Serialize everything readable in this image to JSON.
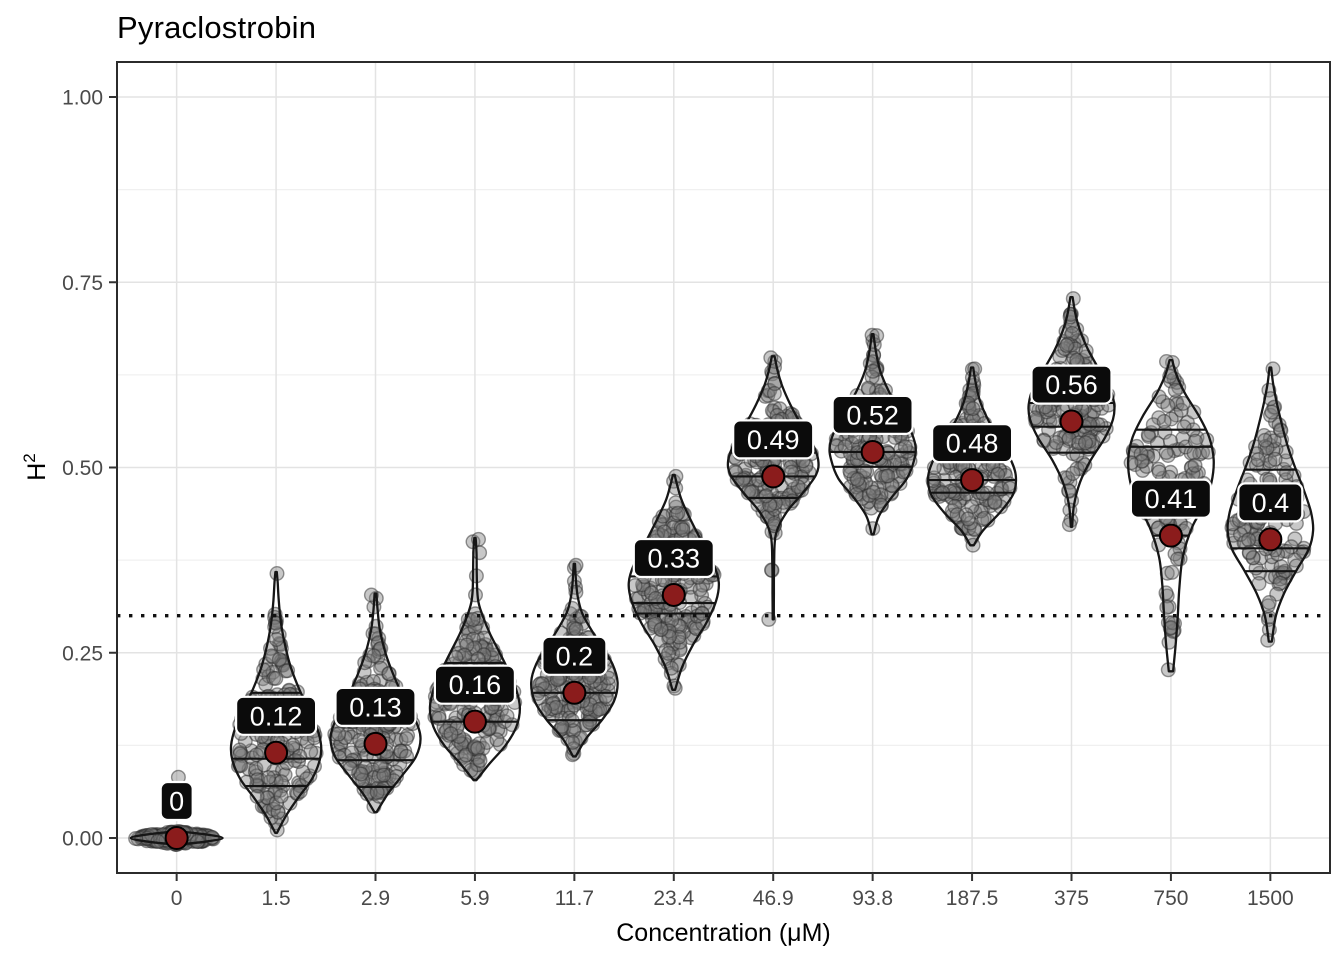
{
  "title": "Pyraclostrobin",
  "x_axis": {
    "label": "Concentration (μM)",
    "ticks": [
      "0",
      "1.5",
      "2.9",
      "5.9",
      "11.7",
      "23.4",
      "46.9",
      "93.8",
      "187.5",
      "375",
      "750",
      "1500"
    ]
  },
  "y_axis": {
    "label_base": "H",
    "label_exp": "2",
    "ticks": [
      "0.00",
      "0.25",
      "0.50",
      "0.75",
      "1.00"
    ],
    "tick_values": [
      0,
      0.25,
      0.5,
      0.75,
      1.0
    ],
    "minor_values": [
      0.125,
      0.375,
      0.625,
      0.875
    ]
  },
  "reference_line": {
    "value": 0.3,
    "style": "dotted",
    "color": "#111111"
  },
  "colors": {
    "mean_point": "#8B1C1C",
    "mean_point_stroke": "#000000",
    "label_bg": "#0B0B0B",
    "label_text": "#FFFFFF",
    "label_border": "#FFFFFF",
    "violin_stroke": "#161616",
    "violin_fill": "#FFFFFF",
    "quantile_line": "#141414",
    "grid_major": "#E3E3E3",
    "grid_minor": "#F0F0F0",
    "panel_border": "#2B2B2B",
    "tick_mark": "#333333",
    "tick_text": "#4A4A4A",
    "axis_title": "#000000",
    "jitter_fill": "rgba(125,125,125,0.42)",
    "jitter_stroke": "rgba(45,45,45,0.5)"
  },
  "chart_data": {
    "type": "violin",
    "title": "Pyraclostrobin",
    "xlabel": "Concentration (μM)",
    "ylabel": "H²",
    "ylim": [
      0,
      1.0
    ],
    "grid": true,
    "reference_y": 0.3,
    "categories": [
      "0",
      "1.5",
      "2.9",
      "5.9",
      "11.7",
      "23.4",
      "46.9",
      "93.8",
      "187.5",
      "375",
      "750",
      "1500"
    ],
    "mean_labels": [
      "0",
      "0.12",
      "0.13",
      "0.16",
      "0.2",
      "0.33",
      "0.49",
      "0.52",
      "0.48",
      "0.56",
      "0.41",
      "0.4"
    ],
    "series": [
      {
        "concentration": "0",
        "mean": 0,
        "mean_label": "0",
        "quantiles": [],
        "range": [
          -0.009,
          0.009
        ],
        "profile": [
          [
            -0.009,
            0.02
          ],
          [
            -0.005,
            0.62
          ],
          [
            0,
            1
          ],
          [
            0.005,
            0.62
          ],
          [
            0.009,
            0.02
          ]
        ],
        "n_points": 220,
        "outliers": [
          0.082
        ],
        "hw": 1.02
      },
      {
        "concentration": "1.5",
        "mean": 0.115,
        "mean_label": "0.12",
        "quantiles": [
          0.07,
          0.107,
          0.196
        ],
        "range": [
          0.007,
          0.359
        ],
        "profile": [
          [
            0.007,
            0.02
          ],
          [
            0.03,
            0.22
          ],
          [
            0.055,
            0.5
          ],
          [
            0.08,
            0.8
          ],
          [
            0.105,
            0.97
          ],
          [
            0.125,
            1
          ],
          [
            0.15,
            0.9
          ],
          [
            0.175,
            0.72
          ],
          [
            0.2,
            0.52
          ],
          [
            0.23,
            0.33
          ],
          [
            0.26,
            0.2
          ],
          [
            0.29,
            0.11
          ],
          [
            0.32,
            0.06
          ],
          [
            0.345,
            0.035
          ],
          [
            0.359,
            0.015
          ]
        ],
        "n_points": 190,
        "outliers": [
          0.357
        ],
        "hw": 1
      },
      {
        "concentration": "2.9",
        "mean": 0.127,
        "mean_label": "0.13",
        "quantiles": [
          0.069,
          0.105,
          0.17
        ],
        "range": [
          0.035,
          0.33
        ],
        "profile": [
          [
            0.035,
            0.025
          ],
          [
            0.06,
            0.28
          ],
          [
            0.085,
            0.6
          ],
          [
            0.11,
            0.9
          ],
          [
            0.135,
            1
          ],
          [
            0.16,
            0.88
          ],
          [
            0.19,
            0.62
          ],
          [
            0.22,
            0.4
          ],
          [
            0.25,
            0.22
          ],
          [
            0.28,
            0.1
          ],
          [
            0.305,
            0.05
          ],
          [
            0.33,
            0.02
          ]
        ],
        "n_points": 190,
        "outliers": [
          0.328
        ],
        "hw": 1
      },
      {
        "concentration": "5.9",
        "mean": 0.157,
        "mean_label": "0.16",
        "quantiles": [
          0.157,
          0.196,
          0.236
        ],
        "range": [
          0.078,
          0.405
        ],
        "profile": [
          [
            0.078,
            0.03
          ],
          [
            0.1,
            0.32
          ],
          [
            0.125,
            0.68
          ],
          [
            0.15,
            0.92
          ],
          [
            0.175,
            1
          ],
          [
            0.2,
            0.92
          ],
          [
            0.225,
            0.75
          ],
          [
            0.25,
            0.55
          ],
          [
            0.275,
            0.34
          ],
          [
            0.3,
            0.17
          ],
          [
            0.318,
            0.08
          ],
          [
            0.335,
            0.05
          ],
          [
            0.36,
            0.04
          ],
          [
            0.385,
            0.035
          ],
          [
            0.405,
            0.015
          ]
        ],
        "n_points": 190,
        "outliers": [
          0.403,
          0.385
        ],
        "hw": 1
      },
      {
        "concentration": "11.7",
        "mean": 0.196,
        "mean_label": "0.2",
        "quantiles": [
          0.159,
          0.196,
          0.242
        ],
        "range": [
          0.11,
          0.37
        ],
        "profile": [
          [
            0.11,
            0.03
          ],
          [
            0.135,
            0.28
          ],
          [
            0.16,
            0.65
          ],
          [
            0.185,
            0.92
          ],
          [
            0.21,
            1
          ],
          [
            0.235,
            0.88
          ],
          [
            0.26,
            0.62
          ],
          [
            0.285,
            0.35
          ],
          [
            0.305,
            0.17
          ],
          [
            0.325,
            0.08
          ],
          [
            0.345,
            0.04
          ],
          [
            0.37,
            0.015
          ]
        ],
        "n_points": 190,
        "outliers": [
          0.368
        ],
        "hw": 0.96
      },
      {
        "concentration": "23.4",
        "mean": 0.328,
        "mean_label": "0.33",
        "quantiles": [
          0.303,
          0.317,
          0.353
        ],
        "range": [
          0.2,
          0.49
        ],
        "profile": [
          [
            0.2,
            0.03
          ],
          [
            0.23,
            0.18
          ],
          [
            0.26,
            0.42
          ],
          [
            0.29,
            0.72
          ],
          [
            0.32,
            0.94
          ],
          [
            0.345,
            1
          ],
          [
            0.37,
            0.88
          ],
          [
            0.4,
            0.62
          ],
          [
            0.43,
            0.37
          ],
          [
            0.455,
            0.18
          ],
          [
            0.475,
            0.08
          ],
          [
            0.49,
            0.02
          ]
        ],
        "n_points": 190,
        "outliers": [
          0.488,
          0.202
        ],
        "hw": 1
      },
      {
        "concentration": "46.9",
        "mean": 0.488,
        "mean_label": "0.49",
        "quantiles": [
          0.459,
          0.488,
          0.52
        ],
        "range": [
          0.295,
          0.65
        ],
        "profile": [
          [
            0.295,
            0.012
          ],
          [
            0.33,
            0.015
          ],
          [
            0.37,
            0.02
          ],
          [
            0.41,
            0.06
          ],
          [
            0.44,
            0.3
          ],
          [
            0.465,
            0.65
          ],
          [
            0.49,
            0.95
          ],
          [
            0.51,
            1
          ],
          [
            0.535,
            0.85
          ],
          [
            0.56,
            0.6
          ],
          [
            0.585,
            0.38
          ],
          [
            0.61,
            0.2
          ],
          [
            0.63,
            0.1
          ],
          [
            0.65,
            0.03
          ]
        ],
        "n_points": 175,
        "outliers": [
          0.295,
          0.648
        ],
        "hw": 1
      },
      {
        "concentration": "93.8",
        "mean": 0.521,
        "mean_label": "0.52",
        "quantiles": [
          0.501,
          0.521,
          0.551
        ],
        "range": [
          0.41,
          0.68
        ],
        "profile": [
          [
            0.41,
            0.025
          ],
          [
            0.435,
            0.15
          ],
          [
            0.46,
            0.45
          ],
          [
            0.485,
            0.8
          ],
          [
            0.51,
            0.97
          ],
          [
            0.53,
            1
          ],
          [
            0.555,
            0.85
          ],
          [
            0.58,
            0.6
          ],
          [
            0.605,
            0.36
          ],
          [
            0.63,
            0.18
          ],
          [
            0.655,
            0.08
          ],
          [
            0.68,
            0.02
          ]
        ],
        "n_points": 170,
        "outliers": [
          0.678
        ],
        "hw": 0.95
      },
      {
        "concentration": "187.5",
        "mean": 0.483,
        "mean_label": "0.48",
        "quantiles": [
          0.466,
          0.483,
          0.512
        ],
        "range": [
          0.395,
          0.635
        ],
        "profile": [
          [
            0.395,
            0.04
          ],
          [
            0.415,
            0.25
          ],
          [
            0.44,
            0.65
          ],
          [
            0.465,
            0.95
          ],
          [
            0.49,
            1
          ],
          [
            0.515,
            0.85
          ],
          [
            0.54,
            0.6
          ],
          [
            0.565,
            0.36
          ],
          [
            0.59,
            0.18
          ],
          [
            0.615,
            0.08
          ],
          [
            0.635,
            0.025
          ]
        ],
        "n_points": 170,
        "outliers": [
          0.633
        ],
        "hw": 0.97
      },
      {
        "concentration": "375",
        "mean": 0.562,
        "mean_label": "0.56",
        "quantiles": [
          0.52,
          0.555,
          0.587
        ],
        "range": [
          0.42,
          0.73
        ],
        "profile": [
          [
            0.42,
            0.015
          ],
          [
            0.45,
            0.06
          ],
          [
            0.48,
            0.2
          ],
          [
            0.51,
            0.45
          ],
          [
            0.54,
            0.78
          ],
          [
            0.565,
            0.97
          ],
          [
            0.585,
            1
          ],
          [
            0.61,
            0.88
          ],
          [
            0.635,
            0.62
          ],
          [
            0.66,
            0.38
          ],
          [
            0.685,
            0.2
          ],
          [
            0.705,
            0.1
          ],
          [
            0.73,
            0.025
          ]
        ],
        "n_points": 170,
        "outliers": [
          0.728,
          0.423
        ],
        "hw": 0.95
      },
      {
        "concentration": "750",
        "mean": 0.408,
        "mean_label": "0.41",
        "quantiles": [
          0.408,
          0.528,
          0.551
        ],
        "range": [
          0.225,
          0.645
        ],
        "profile": [
          [
            0.225,
            0.05
          ],
          [
            0.26,
            0.11
          ],
          [
            0.3,
            0.16
          ],
          [
            0.34,
            0.2
          ],
          [
            0.38,
            0.28
          ],
          [
            0.42,
            0.5
          ],
          [
            0.45,
            0.78
          ],
          [
            0.48,
            0.95
          ],
          [
            0.51,
            1
          ],
          [
            0.54,
            0.9
          ],
          [
            0.57,
            0.65
          ],
          [
            0.6,
            0.33
          ],
          [
            0.625,
            0.13
          ],
          [
            0.645,
            0.03
          ]
        ],
        "n_points": 125,
        "outliers": [
          0.643,
          0.227
        ],
        "hw": 0.95
      },
      {
        "concentration": "1500",
        "mean": 0.403,
        "mean_label": "0.4",
        "quantiles": [
          0.36,
          0.391,
          0.497
        ],
        "range": [
          0.265,
          0.635
        ],
        "profile": [
          [
            0.265,
            0.035
          ],
          [
            0.3,
            0.13
          ],
          [
            0.33,
            0.32
          ],
          [
            0.36,
            0.6
          ],
          [
            0.39,
            0.9
          ],
          [
            0.415,
            1
          ],
          [
            0.44,
            0.95
          ],
          [
            0.47,
            0.78
          ],
          [
            0.5,
            0.58
          ],
          [
            0.53,
            0.4
          ],
          [
            0.56,
            0.26
          ],
          [
            0.59,
            0.14
          ],
          [
            0.615,
            0.06
          ],
          [
            0.635,
            0.02
          ]
        ],
        "n_points": 135,
        "outliers": [
          0.633,
          0.267
        ],
        "hw": 0.95
      }
    ]
  }
}
